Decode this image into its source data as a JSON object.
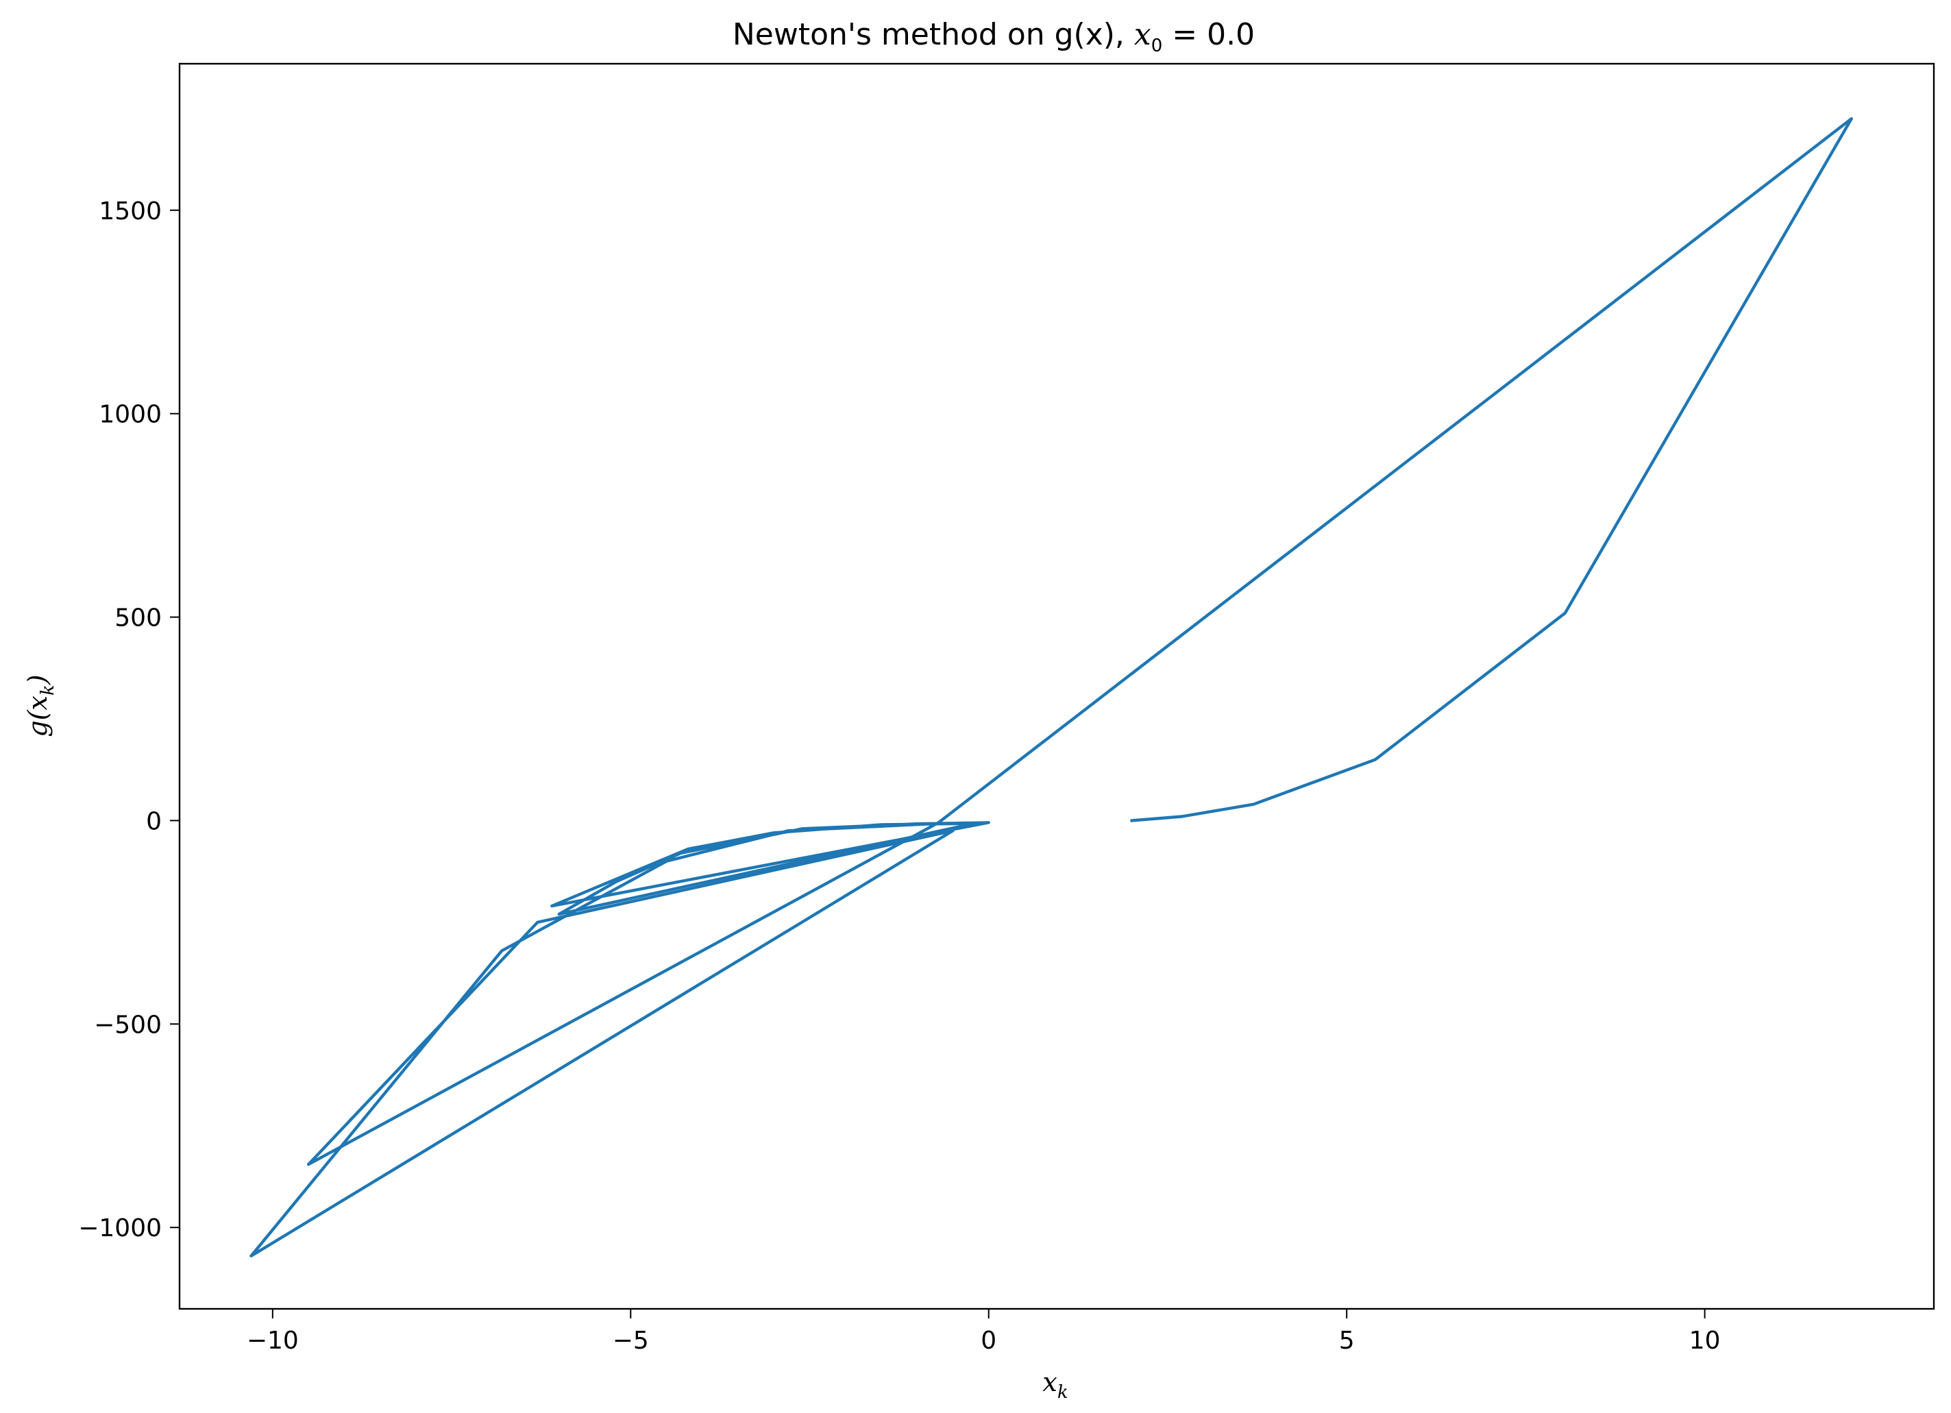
{
  "chart_data": {
    "type": "line",
    "title": "Newton's method on g(x), ",
    "title_math": "x",
    "title_math_sub": "0",
    "title_math_tail": " = 0.0",
    "xlabel_base": "x",
    "xlabel_sub": "k",
    "ylabel_base": "g(x",
    "ylabel_sub": "k",
    "ylabel_close": ")",
    "xlim": [
      -11.3,
      13.2
    ],
    "ylim": [
      -1200,
      1860
    ],
    "x_ticks": [
      -10,
      -5,
      0,
      5,
      10
    ],
    "x_tick_labels": [
      "−10",
      "−5",
      "0",
      "5",
      "10"
    ],
    "y_ticks": [
      -1000,
      -500,
      0,
      500,
      1000,
      1500
    ],
    "y_tick_labels": [
      "−1000",
      "−500",
      "0",
      "500",
      "1000",
      "1500"
    ],
    "grid": false,
    "color": "#1f77b4",
    "series": [
      {
        "points": [
          [
            2.0,
            0
          ],
          [
            2.7,
            10
          ],
          [
            3.7,
            40
          ],
          [
            5.4,
            150
          ],
          [
            8.05,
            510
          ],
          [
            12.05,
            1725
          ],
          [
            -0.7,
            -5
          ],
          [
            -9.5,
            -845
          ],
          [
            -6.3,
            -250
          ],
          [
            -0.5,
            -25
          ],
          [
            -10.3,
            -1070
          ],
          [
            -6.8,
            -320
          ],
          [
            -4.5,
            -100
          ],
          [
            -2.8,
            -25
          ],
          [
            -0.8,
            -8
          ],
          [
            0.0,
            -5
          ],
          [
            -6.1,
            -210
          ],
          [
            -4.2,
            -70
          ],
          [
            -3.0,
            -30
          ],
          [
            -1.5,
            -10
          ],
          [
            -0.2,
            -7
          ],
          [
            -6.0,
            -230
          ],
          [
            -5.2,
            -150
          ],
          [
            -4.3,
            -80
          ],
          [
            -2.6,
            -20
          ],
          [
            -1.0,
            -8
          ],
          [
            -0.3,
            -6
          ]
        ]
      }
    ]
  }
}
